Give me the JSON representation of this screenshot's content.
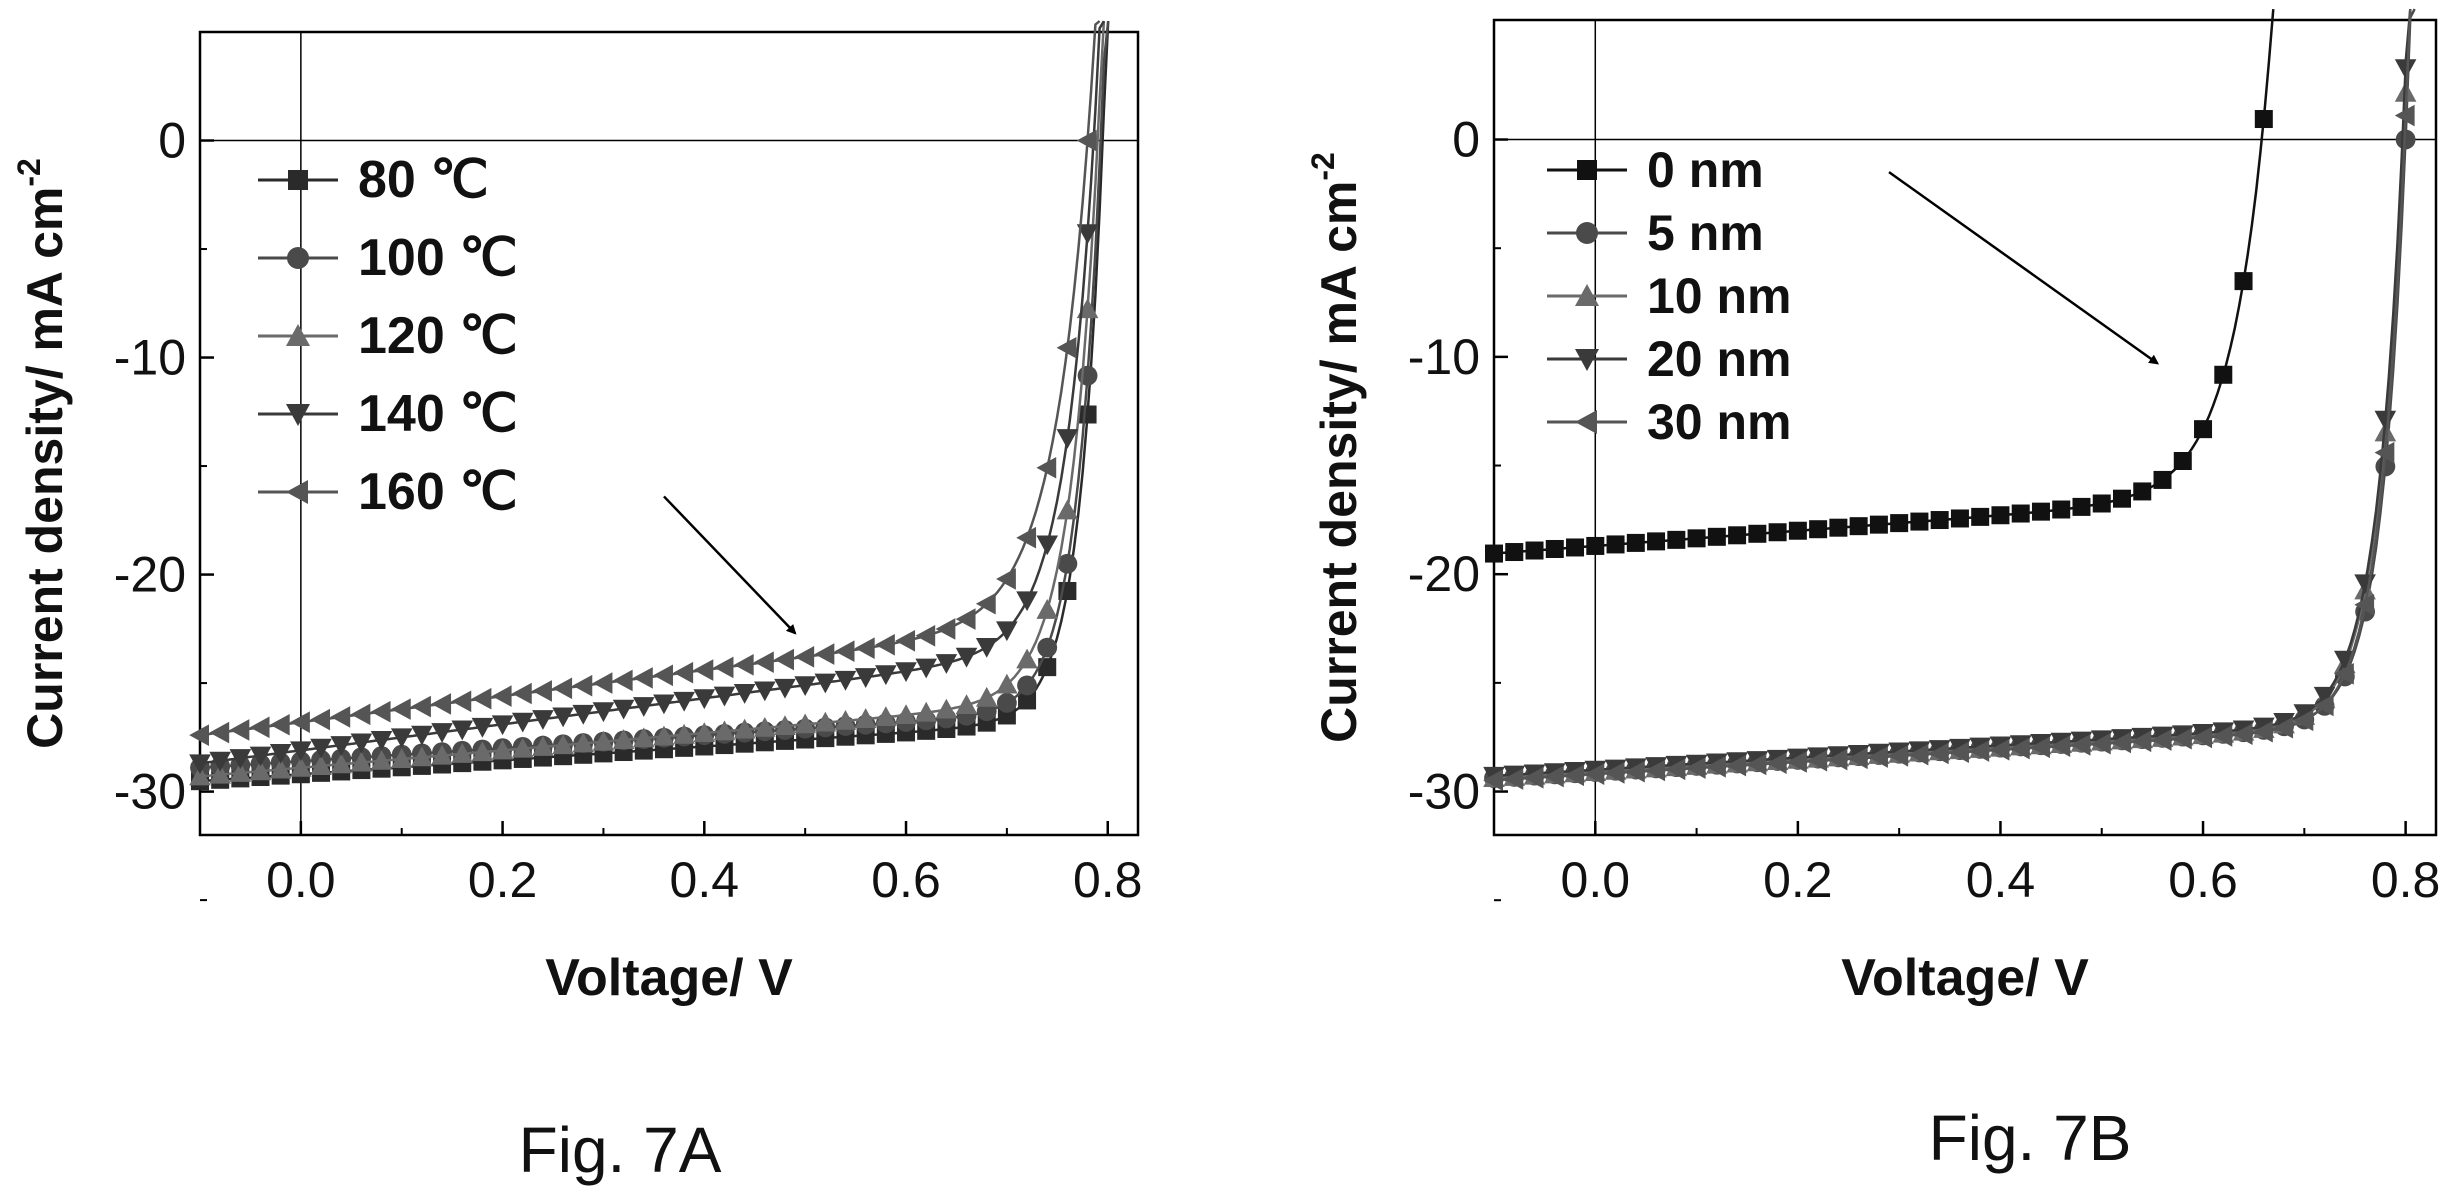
{
  "chart_data": [
    {
      "type": "line",
      "caption": "Fig. 7A",
      "xlabel": "Voltage/ V",
      "ylabel": "Current density/ mA cm",
      "ylabel_sup": "-2",
      "xlim": [
        -0.1,
        0.83
      ],
      "ylim": [
        -32,
        5
      ],
      "xticks": [
        0.0,
        0.2,
        0.4,
        0.6,
        0.8
      ],
      "xtick_labels": [
        "0.0",
        "0.2",
        "0.4",
        "0.6",
        "0.8"
      ],
      "yticks": [
        0,
        -10,
        -20,
        -30
      ],
      "ytick_labels": [
        "0",
        "-10",
        "-20",
        "-30"
      ],
      "grid": false,
      "zero_lines": true,
      "legend_position": "upper-left",
      "annotation_arrow": {
        "from": [
          0.36,
          -16.4
        ],
        "to": [
          0.49,
          -22.7
        ]
      },
      "series": [
        {
          "name": "80 ℃",
          "marker": "square",
          "color": "#2a2a2a",
          "Jsc": -29.2,
          "slope": 3.2,
          "Voc": 0.795,
          "n": 0.0235
        },
        {
          "name": "100 ℃",
          "marker": "circle",
          "color": "#4a4a4a",
          "Jsc": -28.6,
          "slope": 3.0,
          "Voc": 0.793,
          "n": 0.0245
        },
        {
          "name": "120 ℃",
          "marker": "triangle-up",
          "color": "#6a6a6a",
          "Jsc": -28.9,
          "slope": 4.0,
          "Voc": 0.79,
          "n": 0.028
        },
        {
          "name": "140 ℃",
          "marker": "triangle-down",
          "color": "#3a3a3a",
          "Jsc": -28.1,
          "slope": 6.0,
          "Voc": 0.786,
          "n": 0.03
        },
        {
          "name": "160 ℃",
          "marker": "triangle-left",
          "color": "#555555",
          "Jsc": -26.8,
          "slope": 6.0,
          "Voc": 0.78,
          "n": 0.036
        }
      ]
    },
    {
      "type": "line",
      "caption": "Fig. 7B",
      "xlabel": "Voltage/ V",
      "ylabel": "Current density/ mA cm",
      "ylabel_sup": "-2",
      "xlim": [
        -0.1,
        0.83
      ],
      "ylim": [
        -32,
        5.5
      ],
      "xticks": [
        0.0,
        0.2,
        0.4,
        0.6,
        0.8
      ],
      "xtick_labels": [
        "0.0",
        "0.2",
        "0.4",
        "0.6",
        "0.8"
      ],
      "yticks": [
        0,
        -10,
        -20,
        -30
      ],
      "ytick_labels": [
        "0",
        "-10",
        "-20",
        "-30"
      ],
      "grid": false,
      "zero_lines": true,
      "legend_position": "upper-left",
      "annotation_arrow": {
        "from": [
          0.29,
          -1.5
        ],
        "to": [
          0.555,
          -10.3
        ]
      },
      "series": [
        {
          "name": "0 nm",
          "marker": "square",
          "color": "#111111",
          "Jsc": -18.7,
          "slope": 3.5,
          "Voc": 0.658,
          "n": 0.036
        },
        {
          "name": "5 nm",
          "marker": "circle",
          "color": "#4a4a4a",
          "Jsc": -29.1,
          "slope": 2.8,
          "Voc": 0.8,
          "n": 0.0245
        },
        {
          "name": "10 nm",
          "marker": "triangle-up",
          "color": "#6a6a6a",
          "Jsc": -29.1,
          "slope": 2.8,
          "Voc": 0.798,
          "n": 0.026
        },
        {
          "name": "20 nm",
          "marker": "triangle-down",
          "color": "#3a3a3a",
          "Jsc": -29.0,
          "slope": 2.8,
          "Voc": 0.797,
          "n": 0.026
        },
        {
          "name": "30 nm",
          "marker": "triangle-left",
          "color": "#555555",
          "Jsc": -29.2,
          "slope": 2.8,
          "Voc": 0.799,
          "n": 0.025
        }
      ]
    }
  ]
}
